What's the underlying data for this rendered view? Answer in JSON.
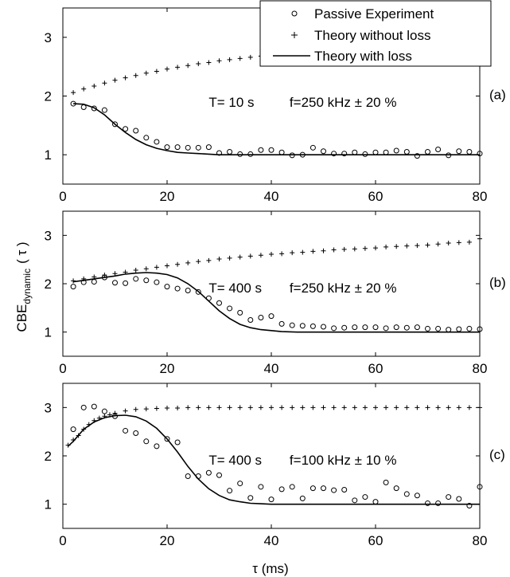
{
  "legend": {
    "entries": [
      {
        "marker": "circle",
        "label": "Passive Experiment"
      },
      {
        "marker": "plus",
        "label": "Theory without loss"
      },
      {
        "marker": "line",
        "label": "Theory with loss"
      }
    ],
    "placement": "top-right"
  },
  "y_label_main": "CBE",
  "y_label_sub": "dynamic",
  "y_label_arg": "( τ )",
  "x_label": "τ (ms)",
  "chart_data": [
    {
      "type": "line",
      "panel_tag": "(a)",
      "annotation_T": "T= 10 s",
      "annotation_f": "f=250 kHz ± 20 %",
      "xlim": [
        0,
        80
      ],
      "ylim": [
        0.5,
        3.5
      ],
      "xticks": [
        0,
        20,
        40,
        60,
        80
      ],
      "yticks": [
        1,
        2,
        3
      ],
      "grid": false,
      "series": [
        {
          "name": "Passive Experiment",
          "marker": "circle",
          "x": [
            2,
            4,
            6,
            8,
            10,
            12,
            14,
            16,
            18,
            20,
            22,
            24,
            26,
            28,
            30,
            32,
            34,
            36,
            38,
            40,
            42,
            44,
            46,
            48,
            50,
            52,
            54,
            56,
            58,
            60,
            62,
            64,
            66,
            68,
            70,
            72,
            74,
            76,
            78,
            80
          ],
          "y": [
            1.87,
            1.81,
            1.79,
            1.76,
            1.52,
            1.44,
            1.41,
            1.29,
            1.22,
            1.13,
            1.13,
            1.12,
            1.12,
            1.13,
            1.03,
            1.05,
            1.01,
            1.01,
            1.08,
            1.08,
            1.04,
            0.99,
            1.0,
            1.12,
            1.06,
            1.02,
            1.02,
            1.04,
            1.01,
            1.04,
            1.04,
            1.07,
            1.05,
            0.98,
            1.05,
            1.09,
            0.99,
            1.06,
            1.05,
            1.02
          ]
        },
        {
          "name": "Theory without loss",
          "marker": "plus",
          "x": [
            2,
            4,
            6,
            8,
            10,
            12,
            14,
            16,
            18,
            20,
            22,
            24,
            26,
            28,
            30,
            32,
            34,
            36,
            38,
            40,
            42,
            44,
            46,
            48,
            50,
            52,
            54,
            56,
            58,
            60,
            62,
            64,
            66,
            68,
            70,
            72,
            74,
            76,
            78,
            80
          ],
          "y": [
            2.06,
            2.12,
            2.17,
            2.22,
            2.27,
            2.31,
            2.35,
            2.39,
            2.42,
            2.46,
            2.49,
            2.52,
            2.55,
            2.57,
            2.6,
            2.62,
            2.64,
            2.66,
            2.68,
            2.7,
            2.71,
            2.73,
            2.74,
            2.75,
            2.77,
            2.78,
            2.79,
            2.8,
            2.81,
            2.82,
            2.83,
            2.84,
            2.84,
            2.85,
            2.86,
            2.86,
            2.87,
            2.88,
            2.88,
            2.89
          ]
        },
        {
          "name": "Theory with loss",
          "marker": "line",
          "x": [
            2,
            4,
            6,
            8,
            10,
            12,
            14,
            16,
            18,
            20,
            22,
            24,
            26,
            28,
            30,
            32,
            34,
            36,
            38,
            40,
            45,
            50,
            55,
            60,
            65,
            70,
            75,
            80
          ],
          "y": [
            1.87,
            1.86,
            1.8,
            1.68,
            1.52,
            1.38,
            1.26,
            1.17,
            1.11,
            1.07,
            1.04,
            1.03,
            1.02,
            1.01,
            1.0,
            1.0,
            1.0,
            1.0,
            1.0,
            1.0,
            1.0,
            1.0,
            1.0,
            1.0,
            1.0,
            1.0,
            1.0,
            1.0
          ]
        }
      ]
    },
    {
      "type": "line",
      "panel_tag": "(b)",
      "annotation_T": "T= 400 s",
      "annotation_f": "f=250 kHz ± 20 %",
      "xlim": [
        0,
        80
      ],
      "ylim": [
        0.5,
        3.5
      ],
      "xticks": [
        0,
        20,
        40,
        60,
        80
      ],
      "yticks": [
        1,
        2,
        3
      ],
      "grid": false,
      "series": [
        {
          "name": "Passive Experiment",
          "marker": "circle",
          "x": [
            2,
            4,
            6,
            8,
            10,
            12,
            14,
            16,
            18,
            20,
            22,
            24,
            26,
            28,
            30,
            32,
            34,
            36,
            38,
            40,
            42,
            44,
            46,
            48,
            50,
            52,
            54,
            56,
            58,
            60,
            62,
            64,
            66,
            68,
            70,
            72,
            74,
            76,
            78,
            80
          ],
          "y": [
            1.94,
            2.03,
            2.04,
            2.13,
            2.02,
            2.01,
            2.1,
            2.07,
            2.03,
            1.94,
            1.9,
            1.86,
            1.83,
            1.7,
            1.6,
            1.49,
            1.4,
            1.25,
            1.3,
            1.33,
            1.17,
            1.14,
            1.13,
            1.12,
            1.11,
            1.08,
            1.09,
            1.1,
            1.1,
            1.1,
            1.08,
            1.1,
            1.09,
            1.1,
            1.07,
            1.07,
            1.05,
            1.06,
            1.07,
            1.06
          ]
        },
        {
          "name": "Theory without loss",
          "marker": "plus",
          "x": [
            2,
            4,
            6,
            8,
            10,
            12,
            14,
            16,
            18,
            20,
            22,
            24,
            26,
            28,
            30,
            32,
            34,
            36,
            38,
            40,
            42,
            44,
            46,
            48,
            50,
            52,
            54,
            56,
            58,
            60,
            62,
            64,
            66,
            68,
            70,
            72,
            74,
            76,
            78,
            80
          ],
          "y": [
            2.06,
            2.1,
            2.14,
            2.18,
            2.21,
            2.24,
            2.28,
            2.31,
            2.34,
            2.37,
            2.4,
            2.43,
            2.46,
            2.48,
            2.51,
            2.53,
            2.55,
            2.57,
            2.59,
            2.61,
            2.62,
            2.64,
            2.65,
            2.67,
            2.68,
            2.7,
            2.71,
            2.72,
            2.73,
            2.74,
            2.76,
            2.77,
            2.78,
            2.79,
            2.8,
            2.82,
            2.84,
            2.85,
            2.86,
            2.93
          ]
        },
        {
          "name": "Theory with loss",
          "marker": "line",
          "x": [
            2,
            4,
            6,
            8,
            10,
            12,
            14,
            16,
            18,
            20,
            22,
            24,
            26,
            28,
            30,
            32,
            34,
            36,
            38,
            40,
            42,
            45,
            50,
            55,
            60,
            65,
            70,
            75,
            80
          ],
          "y": [
            2.04,
            2.07,
            2.1,
            2.13,
            2.16,
            2.2,
            2.22,
            2.23,
            2.22,
            2.19,
            2.12,
            2.0,
            1.84,
            1.64,
            1.44,
            1.28,
            1.16,
            1.09,
            1.05,
            1.03,
            1.01,
            1.0,
            1.0,
            1.0,
            1.0,
            1.0,
            1.0,
            1.0,
            1.0
          ]
        }
      ]
    },
    {
      "type": "line",
      "panel_tag": "(c)",
      "annotation_T": "T= 400 s",
      "annotation_f": "f=100 kHz ± 10 %",
      "xlim": [
        0,
        80
      ],
      "ylim": [
        0.5,
        3.5
      ],
      "xticks": [
        0,
        20,
        40,
        60,
        80
      ],
      "yticks": [
        1,
        2,
        3
      ],
      "grid": false,
      "series": [
        {
          "name": "Passive Experiment",
          "marker": "circle",
          "x": [
            2,
            4,
            6,
            8,
            10,
            12,
            14,
            16,
            18,
            20,
            22,
            24,
            26,
            28,
            30,
            32,
            34,
            36,
            38,
            40,
            42,
            44,
            46,
            48,
            50,
            52,
            54,
            56,
            58,
            60,
            62,
            64,
            66,
            68,
            70,
            72,
            74,
            76,
            78,
            80
          ],
          "y": [
            2.55,
            3.0,
            3.02,
            2.92,
            2.82,
            2.52,
            2.47,
            2.3,
            2.2,
            2.35,
            2.28,
            1.58,
            1.58,
            1.65,
            1.6,
            1.28,
            1.43,
            1.13,
            1.36,
            1.1,
            1.31,
            1.36,
            1.12,
            1.33,
            1.33,
            1.29,
            1.3,
            1.08,
            1.15,
            1.05,
            1.45,
            1.33,
            1.21,
            1.18,
            1.02,
            1.02,
            1.15,
            1.11,
            0.97,
            1.36
          ]
        },
        {
          "name": "Theory without loss",
          "marker": "plus",
          "x": [
            1,
            2,
            3,
            4,
            5,
            6,
            7,
            8,
            9,
            10,
            12,
            14,
            16,
            18,
            20,
            22,
            24,
            26,
            28,
            30,
            32,
            34,
            36,
            38,
            40,
            42,
            44,
            46,
            48,
            50,
            52,
            54,
            56,
            58,
            60,
            62,
            64,
            66,
            68,
            70,
            72,
            74,
            76,
            78,
            80
          ],
          "y": [
            2.22,
            2.33,
            2.42,
            2.55,
            2.65,
            2.73,
            2.78,
            2.82,
            2.85,
            2.88,
            2.93,
            2.96,
            2.97,
            2.98,
            2.99,
            2.99,
            3.0,
            3.0,
            3.0,
            3.0,
            3.0,
            3.0,
            3.0,
            3.0,
            3.0,
            3.0,
            3.0,
            3.0,
            3.0,
            3.0,
            3.0,
            3.0,
            3.0,
            3.0,
            3.0,
            3.0,
            3.0,
            3.0,
            3.0,
            3.0,
            3.0,
            3.0,
            3.0,
            3.0,
            3.0
          ]
        },
        {
          "name": "Theory with loss",
          "marker": "line",
          "x": [
            1,
            2,
            4,
            6,
            8,
            10,
            12,
            14,
            16,
            18,
            20,
            22,
            24,
            26,
            28,
            30,
            32,
            34,
            36,
            38,
            40,
            45,
            50,
            55,
            60,
            65,
            70,
            75,
            80
          ],
          "y": [
            2.2,
            2.3,
            2.55,
            2.7,
            2.79,
            2.83,
            2.84,
            2.81,
            2.72,
            2.57,
            2.35,
            2.08,
            1.78,
            1.52,
            1.32,
            1.18,
            1.09,
            1.05,
            1.02,
            1.01,
            1.0,
            1.0,
            1.0,
            1.0,
            1.0,
            1.0,
            1.0,
            1.0,
            1.0
          ]
        }
      ]
    }
  ]
}
